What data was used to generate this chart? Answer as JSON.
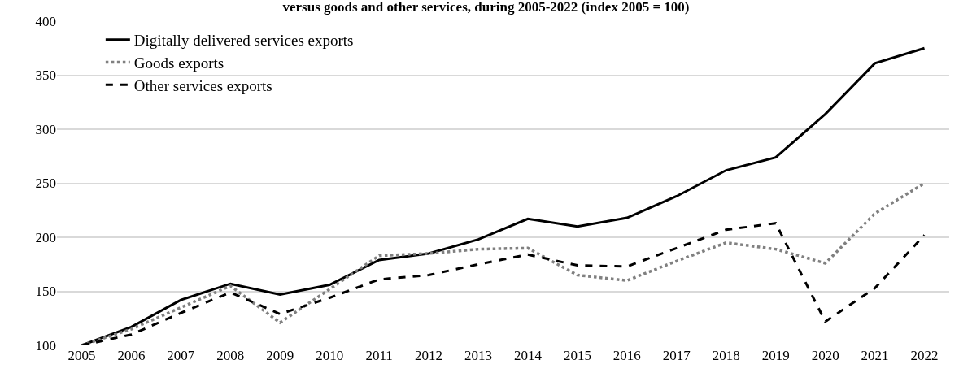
{
  "chart_data": {
    "type": "line",
    "title": "versus goods and other services, during 2005-2022 (index 2005 = 100)",
    "categories": [
      "2005",
      "2006",
      "2007",
      "2008",
      "2009",
      "2010",
      "2011",
      "2012",
      "2013",
      "2014",
      "2015",
      "2016",
      "2017",
      "2018",
      "2019",
      "2020",
      "2021",
      "2022"
    ],
    "series": [
      {
        "name": "Digitally delivered services exports",
        "color": "#000000",
        "line_style": "solid",
        "values": [
          100,
          117,
          142,
          157,
          147,
          156,
          179,
          185,
          198,
          217,
          210,
          218,
          238,
          262,
          274,
          314,
          361,
          375
        ]
      },
      {
        "name": "Goods exports",
        "color": "#808080",
        "line_style": "dotted",
        "values": [
          100,
          115,
          135,
          155,
          121,
          152,
          183,
          185,
          189,
          190,
          165,
          160,
          178,
          195,
          189,
          176,
          222,
          250
        ]
      },
      {
        "name": "Other services exports",
        "color": "#000000",
        "line_style": "dashed",
        "values": [
          100,
          110,
          130,
          149,
          129,
          144,
          161,
          165,
          175,
          184,
          174,
          173,
          190,
          207,
          213,
          122,
          153,
          202
        ]
      }
    ],
    "ylim": [
      100,
      400
    ],
    "yticks": [
      100,
      150,
      200,
      250,
      300,
      350,
      400
    ],
    "grid": "y",
    "legend": "top left",
    "marker": "none"
  }
}
